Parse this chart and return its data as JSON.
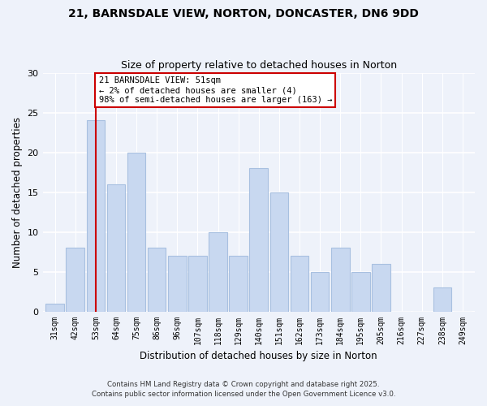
{
  "title1": "21, BARNSDALE VIEW, NORTON, DONCASTER, DN6 9DD",
  "title2": "Size of property relative to detached houses in Norton",
  "xlabel": "Distribution of detached houses by size in Norton",
  "ylabel": "Number of detached properties",
  "categories": [
    "31sqm",
    "42sqm",
    "53sqm",
    "64sqm",
    "75sqm",
    "86sqm",
    "96sqm",
    "107sqm",
    "118sqm",
    "129sqm",
    "140sqm",
    "151sqm",
    "162sqm",
    "173sqm",
    "184sqm",
    "195sqm",
    "205sqm",
    "216sqm",
    "227sqm",
    "238sqm",
    "249sqm"
  ],
  "values": [
    1,
    8,
    24,
    16,
    20,
    8,
    7,
    7,
    10,
    7,
    18,
    15,
    7,
    5,
    8,
    5,
    6,
    0,
    0,
    3,
    0
  ],
  "bar_color": "#c8d8f0",
  "bar_edge_color": "#a8c0e0",
  "vline_x_idx": 2,
  "vline_color": "#cc0000",
  "annotation_lines": [
    "21 BARNSDALE VIEW: 51sqm",
    "← 2% of detached houses are smaller (4)",
    "98% of semi-detached houses are larger (163) →"
  ],
  "annotation_box_color": "#ffffff",
  "annotation_box_edge": "#cc0000",
  "ylim": [
    0,
    30
  ],
  "yticks": [
    0,
    5,
    10,
    15,
    20,
    25,
    30
  ],
  "footer1": "Contains HM Land Registry data © Crown copyright and database right 2025.",
  "footer2": "Contains public sector information licensed under the Open Government Licence v3.0.",
  "bg_color": "#eef2fa"
}
